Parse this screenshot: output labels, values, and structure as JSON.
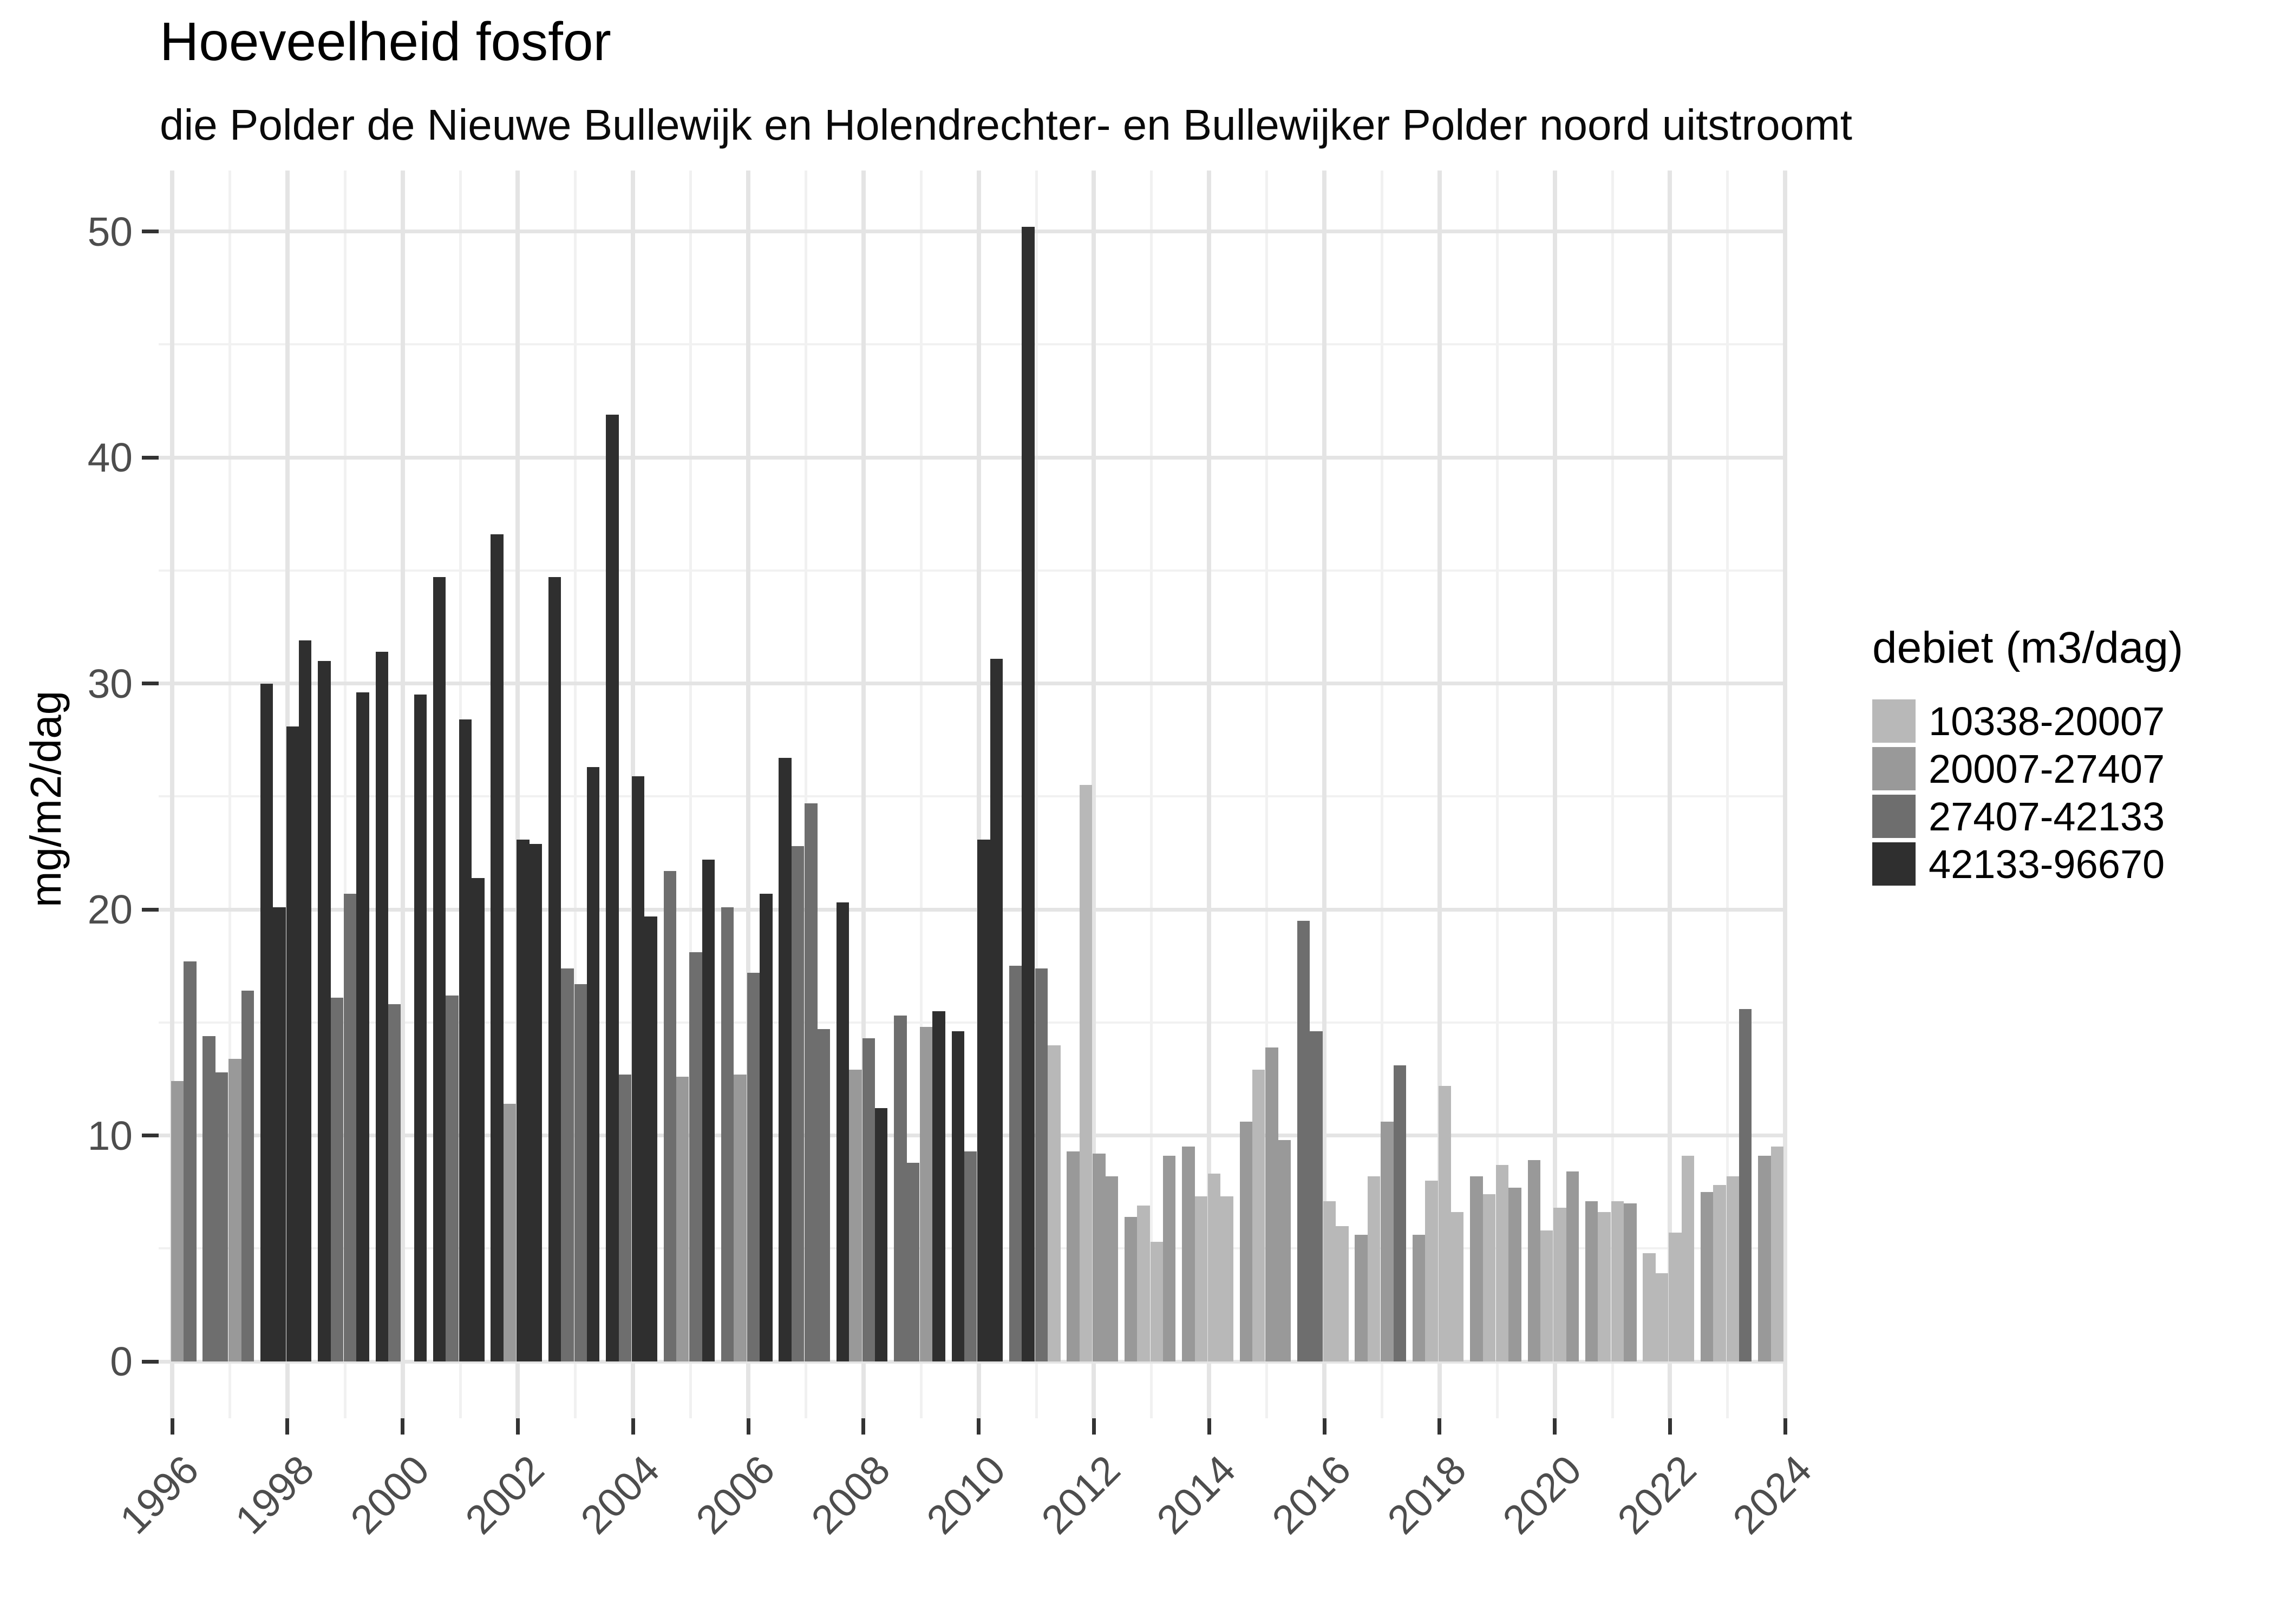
{
  "title": "Hoeveelheid fosfor",
  "subtitle": "die Polder de Nieuwe Bullewijk en Holendrechter- en Bullewijker Polder noord uitstroomt",
  "y_axis": {
    "label": "mg/m2/dag",
    "major_ticks": [
      0,
      10,
      20,
      30,
      40,
      50
    ],
    "minor_gridlines": [
      5,
      15,
      25,
      35,
      45
    ],
    "range": [
      0,
      50
    ]
  },
  "x_axis": {
    "major_ticks": [
      1996,
      1998,
      2000,
      2002,
      2004,
      2006,
      2008,
      2010,
      2012,
      2014,
      2016,
      2018,
      2020,
      2022,
      2024
    ],
    "minor_gridlines": [
      1997,
      1999,
      2001,
      2003,
      2005,
      2007,
      2009,
      2011,
      2013,
      2015,
      2017,
      2019,
      2021,
      2023
    ],
    "range": [
      1996,
      2024
    ]
  },
  "legend": {
    "title": "debiet (m3/dag)",
    "entries": [
      {
        "label": "10338-20007",
        "color": "#b8b8b8"
      },
      {
        "label": "20007-27407",
        "color": "#999999"
      },
      {
        "label": "27407-42133",
        "color": "#6e6e6e"
      },
      {
        "label": "42133-96670",
        "color": "#2f2f2f"
      }
    ]
  },
  "chart_data": {
    "type": "bar",
    "title": "Hoeveelheid fosfor",
    "xlabel": "",
    "ylabel": "mg/m2/dag",
    "ylim": [
      0,
      50
    ],
    "xlim": [
      1996,
      2024
    ],
    "grid": "on",
    "legend_position": "right",
    "series_unit": "mg/m2/dag per kwartaal",
    "class_palette": {
      "10338-20007": "#b8b8b8",
      "20007-27407": "#999999",
      "27407-42133": "#6e6e6e",
      "42133-96670": "#2f2f2f"
    },
    "missing_quarters": [
      "2000 Q1"
    ],
    "bars": [
      [
        1996,
        1,
        12.4,
        2
      ],
      [
        1996,
        2,
        17.7,
        3
      ],
      [
        1996,
        3,
        14.4,
        3
      ],
      [
        1996,
        4,
        12.8,
        3
      ],
      [
        1997,
        1,
        13.4,
        2
      ],
      [
        1997,
        2,
        16.4,
        3
      ],
      [
        1997,
        3,
        30.0,
        4
      ],
      [
        1997,
        4,
        20.1,
        4
      ],
      [
        1998,
        1,
        28.1,
        4
      ],
      [
        1998,
        2,
        31.9,
        4
      ],
      [
        1998,
        3,
        31.0,
        4
      ],
      [
        1998,
        4,
        16.1,
        3
      ],
      [
        1999,
        1,
        20.7,
        3
      ],
      [
        1999,
        2,
        29.6,
        4
      ],
      [
        1999,
        3,
        31.4,
        4
      ],
      [
        1999,
        4,
        15.8,
        3
      ],
      [
        2000,
        2,
        29.5,
        4
      ],
      [
        2000,
        3,
        34.7,
        4
      ],
      [
        2000,
        4,
        16.2,
        3
      ],
      [
        2001,
        1,
        28.4,
        4
      ],
      [
        2001,
        2,
        21.4,
        4
      ],
      [
        2001,
        3,
        36.6,
        4
      ],
      [
        2001,
        4,
        11.4,
        2
      ],
      [
        2002,
        1,
        23.1,
        4
      ],
      [
        2002,
        2,
        22.9,
        4
      ],
      [
        2002,
        3,
        34.7,
        4
      ],
      [
        2002,
        4,
        17.4,
        3
      ],
      [
        2003,
        1,
        16.7,
        3
      ],
      [
        2003,
        2,
        26.3,
        4
      ],
      [
        2003,
        3,
        41.9,
        4
      ],
      [
        2003,
        4,
        12.7,
        3
      ],
      [
        2004,
        1,
        25.9,
        4
      ],
      [
        2004,
        2,
        19.7,
        4
      ],
      [
        2004,
        3,
        21.7,
        3
      ],
      [
        2004,
        4,
        12.6,
        2
      ],
      [
        2005,
        1,
        18.1,
        3
      ],
      [
        2005,
        2,
        22.2,
        4
      ],
      [
        2005,
        3,
        20.1,
        3
      ],
      [
        2005,
        4,
        12.7,
        2
      ],
      [
        2006,
        1,
        17.2,
        3
      ],
      [
        2006,
        2,
        20.7,
        4
      ],
      [
        2006,
        3,
        26.7,
        4
      ],
      [
        2006,
        4,
        22.8,
        3
      ],
      [
        2007,
        1,
        24.7,
        3
      ],
      [
        2007,
        2,
        14.7,
        3
      ],
      [
        2007,
        3,
        20.3,
        4
      ],
      [
        2007,
        4,
        12.9,
        2
      ],
      [
        2008,
        1,
        14.3,
        3
      ],
      [
        2008,
        2,
        11.2,
        4
      ],
      [
        2008,
        3,
        15.3,
        3
      ],
      [
        2008,
        4,
        8.8,
        3
      ],
      [
        2009,
        1,
        14.8,
        2
      ],
      [
        2009,
        2,
        15.5,
        4
      ],
      [
        2009,
        3,
        14.6,
        4
      ],
      [
        2009,
        4,
        9.3,
        3
      ],
      [
        2010,
        1,
        23.1,
        4
      ],
      [
        2010,
        2,
        31.1,
        4
      ],
      [
        2010,
        3,
        17.5,
        3
      ],
      [
        2010,
        4,
        50.2,
        4
      ],
      [
        2011,
        1,
        17.4,
        3
      ],
      [
        2011,
        2,
        14.0,
        1
      ],
      [
        2011,
        3,
        9.3,
        2
      ],
      [
        2011,
        4,
        25.5,
        1
      ],
      [
        2012,
        1,
        9.2,
        2
      ],
      [
        2012,
        2,
        8.2,
        2
      ],
      [
        2012,
        3,
        6.4,
        2
      ],
      [
        2012,
        4,
        6.9,
        1
      ],
      [
        2013,
        1,
        5.3,
        1
      ],
      [
        2013,
        2,
        9.1,
        2
      ],
      [
        2013,
        3,
        9.5,
        2
      ],
      [
        2013,
        4,
        7.3,
        1
      ],
      [
        2014,
        1,
        8.3,
        1
      ],
      [
        2014,
        2,
        7.3,
        1
      ],
      [
        2014,
        3,
        10.6,
        2
      ],
      [
        2014,
        4,
        12.9,
        1
      ],
      [
        2015,
        1,
        13.9,
        2
      ],
      [
        2015,
        2,
        9.8,
        2
      ],
      [
        2015,
        3,
        19.5,
        3
      ],
      [
        2015,
        4,
        14.6,
        3
      ],
      [
        2016,
        1,
        7.1,
        1
      ],
      [
        2016,
        2,
        6.0,
        1
      ],
      [
        2016,
        3,
        5.6,
        2
      ],
      [
        2016,
        4,
        8.2,
        1
      ],
      [
        2017,
        1,
        10.6,
        2
      ],
      [
        2017,
        2,
        13.1,
        3
      ],
      [
        2017,
        3,
        5.6,
        2
      ],
      [
        2017,
        4,
        8.0,
        1
      ],
      [
        2018,
        1,
        12.2,
        1
      ],
      [
        2018,
        2,
        6.6,
        1
      ],
      [
        2018,
        3,
        8.2,
        2
      ],
      [
        2018,
        4,
        7.4,
        1
      ],
      [
        2019,
        1,
        8.7,
        1
      ],
      [
        2019,
        2,
        7.7,
        2
      ],
      [
        2019,
        3,
        8.9,
        2
      ],
      [
        2019,
        4,
        5.8,
        1
      ],
      [
        2020,
        1,
        6.8,
        1
      ],
      [
        2020,
        2,
        8.4,
        2
      ],
      [
        2020,
        3,
        7.1,
        2
      ],
      [
        2020,
        4,
        6.6,
        1
      ],
      [
        2021,
        1,
        7.1,
        1
      ],
      [
        2021,
        2,
        7.0,
        2
      ],
      [
        2021,
        3,
        4.8,
        1
      ],
      [
        2021,
        4,
        3.9,
        1
      ],
      [
        2022,
        1,
        5.7,
        1
      ],
      [
        2022,
        2,
        9.1,
        1
      ],
      [
        2022,
        3,
        7.5,
        2
      ],
      [
        2022,
        4,
        7.8,
        1
      ],
      [
        2023,
        1,
        8.2,
        1
      ],
      [
        2023,
        2,
        15.6,
        3
      ],
      [
        2023,
        3,
        9.1,
        2
      ],
      [
        2023,
        4,
        9.5,
        1
      ]
    ],
    "bar_value_format": "value mg/m2/dag, class index 1-4 refers to debiet (m3/dag) quartile in legend"
  }
}
